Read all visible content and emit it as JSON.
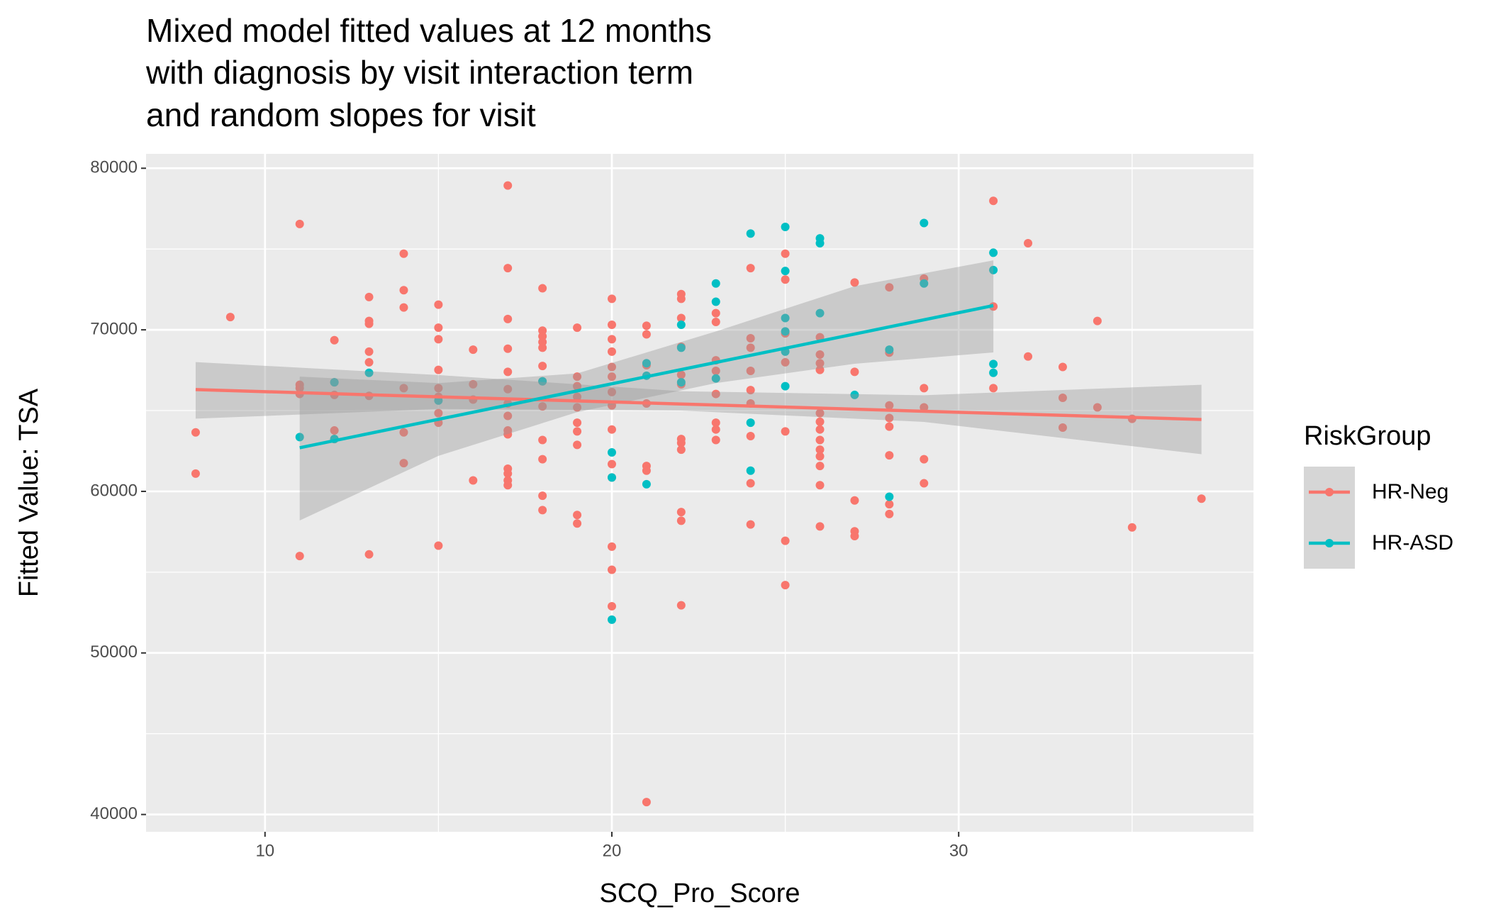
{
  "chart_data": {
    "type": "scatter",
    "title": [
      "Mixed model fitted values at 12 months",
      "with diagnosis by visit interaction term",
      "and random slopes for visit"
    ],
    "x_label": "SCQ_Pro_Score",
    "y_label": "Fitted Value: TSA",
    "legend_title": "RiskGroup",
    "legend_position": "right",
    "xlim": [
      6.57,
      38.5
    ],
    "ylim": [
      38930,
      80890
    ],
    "xticks": [
      10,
      20,
      30
    ],
    "yticks": [
      40000,
      50000,
      60000,
      70000,
      80000
    ],
    "xminor": [
      15,
      25,
      35
    ],
    "yminor": [
      45000,
      55000,
      65000,
      75000
    ],
    "grid": true,
    "band_color": "#999999",
    "series": [
      {
        "name": "HR-Neg",
        "color": "#F8766D",
        "x": [
          8,
          8,
          9,
          11,
          11,
          11,
          11,
          11,
          12,
          12,
          12,
          12,
          12,
          13,
          13,
          13,
          13,
          13,
          13,
          13,
          14,
          14,
          14,
          14,
          14,
          14,
          15,
          15,
          15,
          15,
          15,
          15,
          15,
          15,
          15,
          16,
          16,
          16,
          16,
          17,
          17,
          17,
          17,
          17,
          17,
          17,
          17,
          17,
          17,
          17,
          17,
          17,
          17,
          18,
          18,
          18,
          18,
          18,
          18,
          18,
          18,
          18,
          18,
          18,
          18,
          19,
          19,
          19,
          19,
          19,
          19,
          19,
          19,
          19,
          19,
          20,
          20,
          20,
          20,
          20,
          20,
          20,
          20,
          20,
          20,
          20,
          20,
          20,
          20,
          21,
          21,
          21,
          21,
          21,
          21,
          21,
          22,
          22,
          22,
          22,
          22,
          22,
          22,
          22,
          22,
          22,
          22,
          22,
          23,
          23,
          23,
          23,
          23,
          23,
          23,
          23,
          24,
          24,
          24,
          24,
          24,
          24,
          24,
          24,
          24,
          25,
          25,
          25,
          25,
          25,
          25,
          25,
          26,
          26,
          26,
          26,
          26,
          26,
          26,
          26,
          26,
          26,
          26,
          26,
          26,
          27,
          27,
          27,
          27,
          27,
          28,
          28,
          28,
          28,
          28,
          28,
          28,
          28,
          29,
          29,
          29,
          29,
          29,
          31,
          31,
          31,
          32,
          32,
          33,
          33,
          33,
          34,
          34,
          35,
          35,
          37
        ],
        "values": [
          63650,
          61100,
          70790,
          76550,
          66600,
          66390,
          66030,
          56000,
          69360,
          66750,
          65970,
          63770,
          63240,
          72030,
          70550,
          70370,
          68650,
          67990,
          65910,
          56100,
          74710,
          72450,
          71380,
          66390,
          63650,
          61750,
          71560,
          70130,
          69420,
          67520,
          66390,
          65850,
          64840,
          64250,
          56640,
          68770,
          66630,
          65680,
          60680,
          78930,
          73820,
          70670,
          68830,
          67400,
          66330,
          65440,
          64670,
          63770,
          63530,
          61400,
          61100,
          60680,
          60380,
          72570,
          69950,
          69600,
          69240,
          68890,
          67760,
          66810,
          65260,
          63180,
          61990,
          59730,
          58840,
          70130,
          67100,
          66510,
          65850,
          65200,
          64250,
          63710,
          62880,
          58540,
          58010,
          71920,
          70310,
          69420,
          68650,
          67700,
          67100,
          66150,
          65320,
          63830,
          61690,
          60860,
          56580,
          55150,
          52890,
          70250,
          69720,
          67810,
          65440,
          61570,
          61280,
          40770,
          72210,
          71920,
          70730,
          68950,
          67220,
          66630,
          63240,
          63000,
          62580,
          58720,
          58180,
          52950,
          71030,
          70490,
          68110,
          67460,
          66030,
          64250,
          63830,
          63180,
          73820,
          69480,
          68890,
          67460,
          66270,
          65440,
          63420,
          60500,
          57950,
          74710,
          73110,
          69780,
          67990,
          63710,
          56940,
          54200,
          69540,
          68470,
          67930,
          67520,
          64840,
          64310,
          63830,
          63180,
          62580,
          62170,
          61570,
          60380,
          57830,
          72930,
          67400,
          59440,
          57530,
          57230,
          72630,
          68590,
          65320,
          64540,
          64010,
          62230,
          59200,
          58600,
          73170,
          66390,
          65200,
          61990,
          60500,
          77980,
          71440,
          66390,
          75360,
          68350,
          67700,
          65790,
          63950,
          70550,
          65200,
          64490,
          57770,
          59550
        ],
        "fit": {
          "x": [
            8,
            15,
            22,
            29,
            37
          ],
          "y": [
            66300,
            65850,
            65410,
            64960,
            64450
          ],
          "lower": [
            64500,
            65100,
            65000,
            64300,
            62300
          ],
          "upper": [
            68000,
            67200,
            66200,
            65950,
            66600
          ]
        }
      },
      {
        "name": "HR-ASD",
        "color": "#00BFC4",
        "x": [
          11,
          12,
          12,
          13,
          15,
          18,
          20,
          20,
          20,
          21,
          21,
          21,
          22,
          22,
          22,
          23,
          23,
          23,
          24,
          24,
          24,
          25,
          25,
          25,
          25,
          25,
          25,
          26,
          26,
          26,
          27,
          28,
          28,
          29,
          29,
          31,
          31,
          31,
          31
        ],
        "values": [
          63360,
          66750,
          63240,
          67340,
          65620,
          66810,
          62410,
          60860,
          52060,
          67930,
          67160,
          60440,
          70310,
          68890,
          66750,
          72870,
          71740,
          66990,
          75960,
          64250,
          61280,
          76370,
          73640,
          70730,
          69900,
          68650,
          66510,
          75660,
          75360,
          71030,
          65970,
          68770,
          59670,
          76610,
          72870,
          74770,
          73700,
          67880,
          67340
        ],
        "fit": {
          "x": [
            11,
            15,
            19,
            23,
            27,
            31
          ],
          "y": [
            62700,
            64460,
            66220,
            67980,
            69740,
            71500
          ],
          "lower": [
            58200,
            62200,
            64900,
            66700,
            67900,
            68600
          ],
          "upper": [
            67100,
            66700,
            67300,
            69900,
            72700,
            74300
          ]
        }
      }
    ]
  }
}
